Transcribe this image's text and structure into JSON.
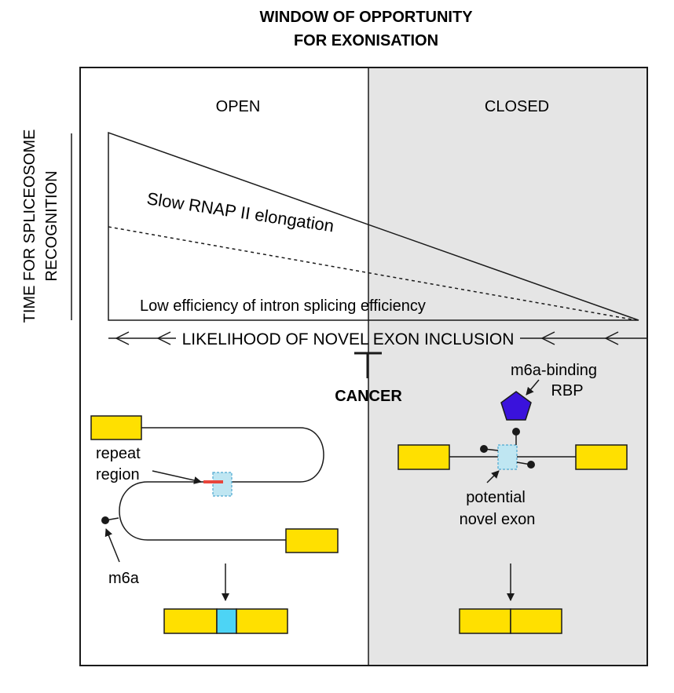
{
  "title": {
    "line1": "WINDOW OF OPPORTUNITY",
    "line2": "FOR EXONISATION"
  },
  "panels": {
    "open": "OPEN",
    "closed": "CLOSED"
  },
  "y_axis_label": {
    "line1": "TIME FOR SPLICEOSOME",
    "line2": "RECOGNITION"
  },
  "wedge_labels": {
    "slow": "Slow RNAP II elongation",
    "low": "Low efficiency of intron splicing efficiency"
  },
  "likelihood_label": "LIKELIHOOD OF NOVEL EXON INCLUSION",
  "cancer_label": "CANCER",
  "open_annotations": {
    "repeat_line1": "repeat",
    "repeat_line2": "region",
    "m6a": "m6a"
  },
  "closed_annotations": {
    "rbp_line1": "m6a-binding",
    "rbp_line2": "RBP",
    "novel_line1": "potential",
    "novel_line2": "novel exon"
  },
  "colors": {
    "exon": "#FFE000",
    "novel_exon": "#4DD4F5",
    "novel_exon_faint": "#BFE6F2",
    "repeat": "#E8463C",
    "rbp": "#3A12DC",
    "closed_bg": "#E5E5E5",
    "line": "#1a1a1a"
  }
}
